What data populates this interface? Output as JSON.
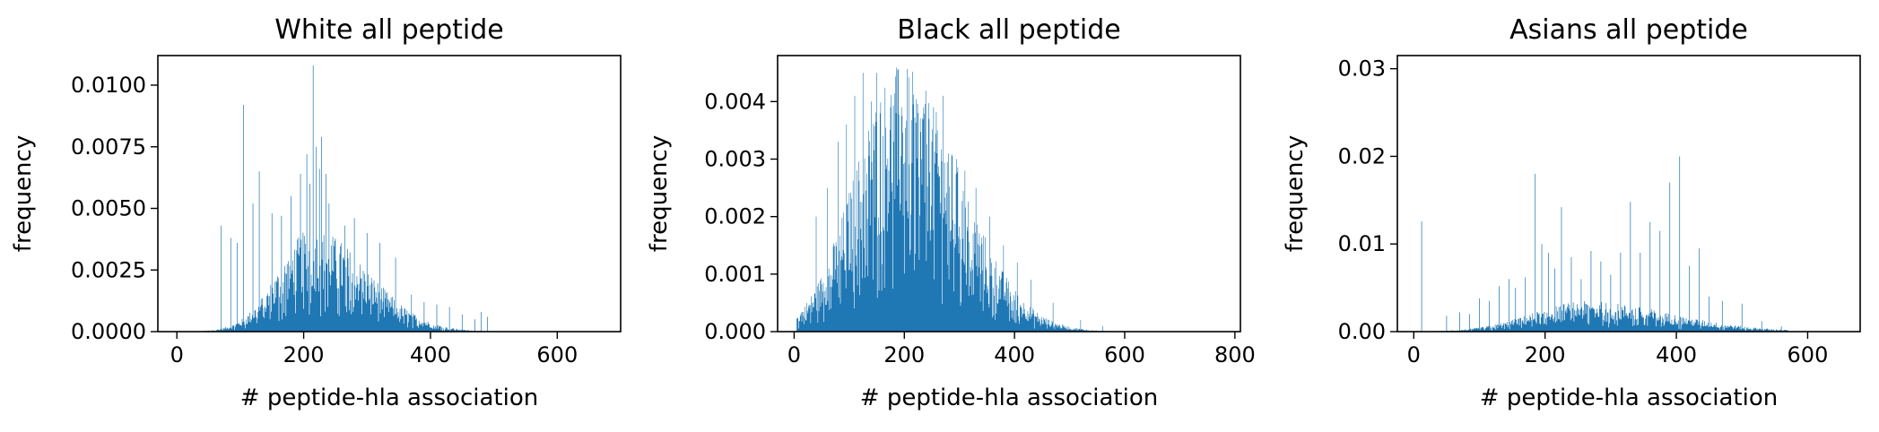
{
  "colors": {
    "bar": "#1f77b4",
    "axis": "#000000",
    "background": "#ffffff"
  },
  "chart_data": [
    {
      "type": "bar",
      "title": "White  all peptide",
      "xlabel": "# peptide-hla association",
      "ylabel": "frequency",
      "xlim": [
        -30,
        700
      ],
      "ylim": [
        0,
        0.0112
      ],
      "xticks": [
        0,
        200,
        400,
        600
      ],
      "xtick_labels": [
        "0",
        "200",
        "400",
        "600"
      ],
      "yticks": [
        0,
        0.0025,
        0.005,
        0.0075,
        0.01
      ],
      "ytick_labels": [
        "0.0000",
        "0.0025",
        "0.0050",
        "0.0075",
        "0.0100"
      ],
      "grid": false,
      "bin_width": 1,
      "profile": {
        "start": 30,
        "end": 500,
        "peak": 215,
        "height": 0.0029,
        "sigma_left": 55,
        "sigma_right": 85
      },
      "spikes": [
        [
          70,
          0.0043
        ],
        [
          85,
          0.0038
        ],
        [
          95,
          0.0036
        ],
        [
          105,
          0.0092
        ],
        [
          120,
          0.0052
        ],
        [
          130,
          0.0065
        ],
        [
          150,
          0.0048
        ],
        [
          165,
          0.0047
        ],
        [
          180,
          0.0055
        ],
        [
          195,
          0.0064
        ],
        [
          205,
          0.0072
        ],
        [
          210,
          0.006
        ],
        [
          215,
          0.0108
        ],
        [
          220,
          0.0075
        ],
        [
          225,
          0.0066
        ],
        [
          228,
          0.0079
        ],
        [
          235,
          0.0064
        ],
        [
          240,
          0.0052
        ],
        [
          265,
          0.0043
        ],
        [
          280,
          0.0046
        ],
        [
          300,
          0.004
        ],
        [
          320,
          0.0036
        ],
        [
          345,
          0.003
        ],
        [
          370,
          0.0015
        ],
        [
          390,
          0.0012
        ],
        [
          410,
          0.0011
        ],
        [
          430,
          0.001
        ],
        [
          450,
          0.0007
        ],
        [
          470,
          0.0005
        ],
        [
          480,
          0.0008
        ],
        [
          490,
          0.0006
        ]
      ]
    },
    {
      "type": "bar",
      "title": "Black  all peptide",
      "xlabel": "# peptide-hla association",
      "ylabel": "frequency",
      "xlim": [
        -30,
        810
      ],
      "ylim": [
        0,
        0.0048
      ],
      "xticks": [
        0,
        200,
        400,
        600,
        800
      ],
      "xtick_labels": [
        "0",
        "200",
        "400",
        "600",
        "800"
      ],
      "yticks": [
        0,
        0.001,
        0.002,
        0.003,
        0.004
      ],
      "ytick_labels": [
        "0.000",
        "0.001",
        "0.002",
        "0.003",
        "0.004"
      ],
      "grid": false,
      "bin_width": 1,
      "profile": {
        "start": 5,
        "end": 690,
        "peak": 190,
        "height": 0.0032,
        "sigma_left": 80,
        "sigma_right": 110
      },
      "spikes": [
        [
          40,
          0.002
        ],
        [
          60,
          0.0025
        ],
        [
          80,
          0.0033
        ],
        [
          95,
          0.0036
        ],
        [
          110,
          0.0041
        ],
        [
          125,
          0.0045
        ],
        [
          140,
          0.004
        ],
        [
          150,
          0.0045
        ],
        [
          165,
          0.0042
        ],
        [
          175,
          0.0039
        ],
        [
          185,
          0.0038
        ],
        [
          195,
          0.0039
        ],
        [
          205,
          0.0041
        ],
        [
          215,
          0.004
        ],
        [
          225,
          0.0038
        ],
        [
          235,
          0.0039
        ],
        [
          245,
          0.0037
        ],
        [
          260,
          0.0035
        ],
        [
          270,
          0.0041
        ],
        [
          280,
          0.0031
        ],
        [
          295,
          0.003
        ],
        [
          310,
          0.0028
        ],
        [
          330,
          0.0025
        ],
        [
          355,
          0.002
        ],
        [
          380,
          0.0015
        ],
        [
          405,
          0.0012
        ],
        [
          430,
          0.0009
        ],
        [
          470,
          0.0005
        ],
        [
          520,
          0.0002
        ],
        [
          560,
          0.0001
        ]
      ]
    },
    {
      "type": "bar",
      "title": "Asians  all peptide",
      "xlabel": "# peptide-hla association",
      "ylabel": "frequency",
      "xlim": [
        -25,
        680
      ],
      "ylim": [
        0,
        0.0315
      ],
      "xticks": [
        0,
        200,
        400,
        600
      ],
      "xtick_labels": [
        "0",
        "200",
        "400",
        "600"
      ],
      "yticks": [
        0,
        0.01,
        0.02,
        0.03
      ],
      "ytick_labels": [
        "0.00",
        "0.01",
        "0.02",
        "0.03"
      ],
      "grid": false,
      "bin_width": 1,
      "profile": {
        "start": 30,
        "end": 570,
        "peak": 260,
        "height": 0.0024,
        "sigma_left": 80,
        "sigma_right": 130
      },
      "spikes": [
        [
          12,
          0.0126
        ],
        [
          50,
          0.0018
        ],
        [
          70,
          0.0022
        ],
        [
          85,
          0.002
        ],
        [
          100,
          0.0038
        ],
        [
          115,
          0.0035
        ],
        [
          130,
          0.0052
        ],
        [
          145,
          0.006
        ],
        [
          155,
          0.005
        ],
        [
          170,
          0.0062
        ],
        [
          185,
          0.018
        ],
        [
          195,
          0.01
        ],
        [
          205,
          0.009
        ],
        [
          215,
          0.0072
        ],
        [
          225,
          0.0142
        ],
        [
          240,
          0.0085
        ],
        [
          255,
          0.006
        ],
        [
          270,
          0.0092
        ],
        [
          285,
          0.008
        ],
        [
          300,
          0.0065
        ],
        [
          315,
          0.009
        ],
        [
          330,
          0.0148
        ],
        [
          345,
          0.009
        ],
        [
          360,
          0.0125
        ],
        [
          375,
          0.0115
        ],
        [
          390,
          0.017
        ],
        [
          405,
          0.02
        ],
        [
          420,
          0.0075
        ],
        [
          435,
          0.0095
        ],
        [
          450,
          0.004
        ],
        [
          470,
          0.0035
        ],
        [
          500,
          0.0032
        ],
        [
          530,
          0.0012
        ],
        [
          560,
          0.0006
        ]
      ]
    }
  ]
}
